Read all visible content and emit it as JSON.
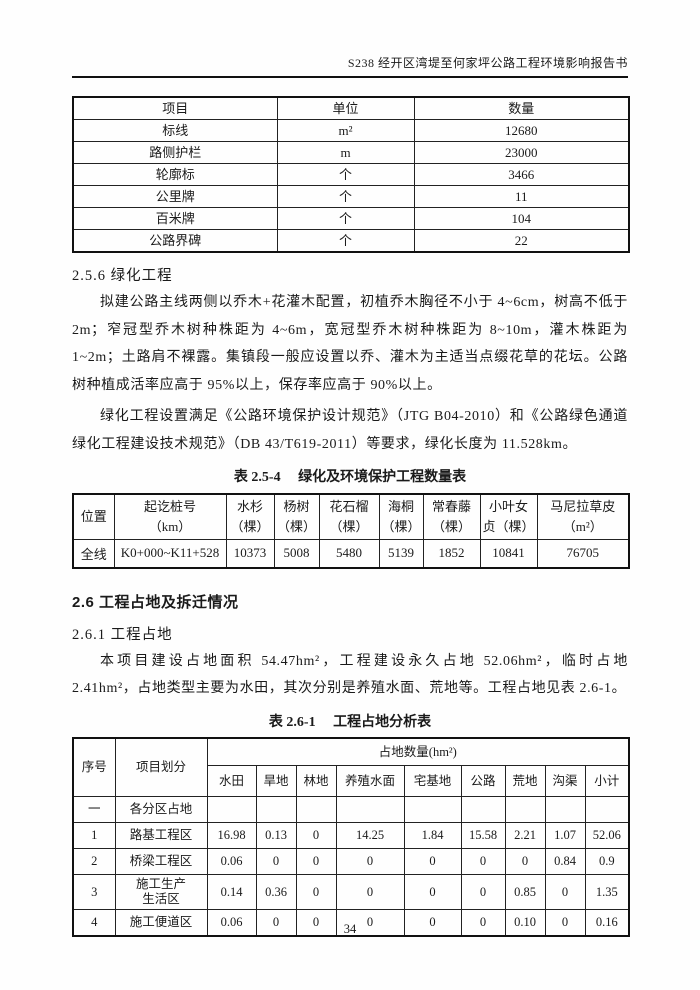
{
  "page": {
    "header_title": "S238 经开区湾堤至何家坪公路工程环境影响报告书",
    "page_number": "34"
  },
  "quantities_table": {
    "headers": [
      "项目",
      "单位",
      "数量"
    ],
    "rows": [
      [
        "标线",
        "m²",
        "12680"
      ],
      [
        "路侧护栏",
        "m",
        "23000"
      ],
      [
        "轮廓标",
        "个",
        "3466"
      ],
      [
        "公里牌",
        "个",
        "11"
      ],
      [
        "百米牌",
        "个",
        "104"
      ],
      [
        "公路界碑",
        "个",
        "22"
      ]
    ]
  },
  "section_256": {
    "heading": "2.5.6  绿化工程",
    "para1": "拟建公路主线两侧以乔木+花灌木配置，初植乔木胸径不小于 4~6cm，树高不低于 2m；窄冠型乔木树种株距为 4~6m，宽冠型乔木树种株距为 8~10m，灌木株距为 1~2m；土路肩不裸露。集镇段一般应设置以乔、灌木为主适当点缀花草的花坛。公路树种植成活率应高于 95%以上，保存率应高于 90%以上。",
    "para2": "绿化工程设置满足《公路环境保护设计规范》（JTG B04-2010）和《公路绿色通道绿化工程建设技术规范》（DB 43/T619-2011）等要求，绿化长度为 11.528km。"
  },
  "greening_table": {
    "caption": "表 2.5-4　 绿化及环境保护工程数量表",
    "headers": [
      "位置",
      "起讫桩号\n（km）",
      "水杉\n（棵）",
      "杨树\n（棵）",
      "花石榴\n（棵）",
      "海桐\n（棵）",
      "常春藤\n（棵）",
      "小叶女\n贞（棵）",
      "马尼拉草皮\n（m²）"
    ],
    "row": [
      "全线",
      "K0+000~K11+528",
      "10373",
      "5008",
      "5480",
      "5139",
      "1852",
      "10841",
      "76705"
    ]
  },
  "section_26": {
    "heading": "2.6 工程占地及拆迁情况",
    "sub_heading": "2.6.1  工程占地",
    "para": "本项目建设占地面积 54.47hm²，工程建设永久占地 52.06hm²，临时占地 2.41hm²，占地类型主要为水田，其次分别是养殖水面、荒地等。工程占地见表 2.6-1。"
  },
  "land_table": {
    "caption": "表 2.6-1　 工程占地分析表",
    "col_no": "序号",
    "col_item": "项目划分",
    "span_header": "占地数量(hm²)",
    "sub_headers": [
      "水田",
      "旱地",
      "林地",
      "养殖水面",
      "宅基地",
      "公路",
      "荒地",
      "沟渠",
      "小计"
    ],
    "rows": [
      {
        "no": "一",
        "name": "各分区占地",
        "values": [
          "",
          "",
          "",
          "",
          "",
          "",
          "",
          "",
          ""
        ]
      },
      {
        "no": "1",
        "name": "路基工程区",
        "values": [
          "16.98",
          "0.13",
          "0",
          "14.25",
          "1.84",
          "15.58",
          "2.21",
          "1.07",
          "52.06"
        ]
      },
      {
        "no": "2",
        "name": "桥梁工程区",
        "values": [
          "0.06",
          "0",
          "0",
          "0",
          "0",
          "0",
          "0",
          "0.84",
          "0.9"
        ]
      },
      {
        "no": "3",
        "name": "施工生产\n生活区",
        "values": [
          "0.14",
          "0.36",
          "0",
          "0",
          "0",
          "0",
          "0.85",
          "0",
          "1.35"
        ]
      },
      {
        "no": "4",
        "name": "施工便道区",
        "values": [
          "0.06",
          "0",
          "0",
          "0",
          "0",
          "0",
          "0.10",
          "0",
          "0.16"
        ]
      }
    ]
  }
}
